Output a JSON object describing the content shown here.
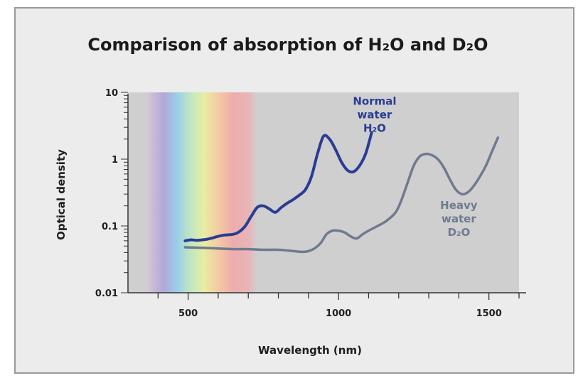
{
  "chart_data": {
    "type": "line",
    "title": "Comparison of absorption of H₂O and D₂O",
    "xlabel": "Wavelength (nm)",
    "ylabel": "Optical density",
    "xlim": [
      300,
      1600
    ],
    "ylim": [
      0.01,
      10
    ],
    "yscale": "log",
    "grid": false,
    "x_ticks": [
      {
        "value": 500,
        "label": "500"
      },
      {
        "value": 1000,
        "label": "1000"
      },
      {
        "value": 1500,
        "label": "1500"
      }
    ],
    "y_ticks": [
      {
        "value": 10,
        "label": "10"
      },
      {
        "value": 1,
        "label": "1"
      },
      {
        "value": 0.1,
        "label": "0.1"
      },
      {
        "value": 0.01,
        "label": "0.01"
      }
    ],
    "visible_spectrum_nm": [
      380,
      720
    ],
    "series": [
      {
        "name": "Normal water H₂O",
        "label_lines": [
          "Normal",
          "water",
          "H₂O"
        ],
        "label_anchor": {
          "x": 1120,
          "y": 6.5
        },
        "color": "#2a3c94",
        "x": [
          490,
          510,
          530,
          560,
          580,
          600,
          620,
          650,
          670,
          690,
          710,
          730,
          750,
          770,
          790,
          810,
          830,
          850,
          870,
          890,
          910,
          930,
          950,
          970,
          990,
          1010,
          1030,
          1050,
          1070,
          1090,
          1110
        ],
        "y": [
          0.06,
          0.062,
          0.061,
          0.063,
          0.066,
          0.07,
          0.073,
          0.075,
          0.082,
          0.1,
          0.14,
          0.19,
          0.2,
          0.18,
          0.16,
          0.19,
          0.22,
          0.25,
          0.29,
          0.35,
          0.55,
          1.2,
          2.2,
          2.0,
          1.4,
          0.9,
          0.68,
          0.65,
          0.8,
          1.2,
          2.5
        ]
      },
      {
        "name": "Heavy water D₂O",
        "label_lines": [
          "Heavy",
          "water",
          "D₂O"
        ],
        "label_anchor": {
          "x": 1400,
          "y": 0.18
        },
        "color": "#6f7a8f",
        "x": [
          490,
          550,
          600,
          650,
          700,
          750,
          800,
          850,
          880,
          900,
          920,
          940,
          960,
          980,
          1000,
          1020,
          1040,
          1060,
          1080,
          1100,
          1130,
          1160,
          1190,
          1210,
          1230,
          1250,
          1270,
          1290,
          1310,
          1330,
          1350,
          1370,
          1390,
          1410,
          1430,
          1450,
          1470,
          1490,
          1510,
          1530
        ],
        "y": [
          0.048,
          0.047,
          0.046,
          0.045,
          0.045,
          0.044,
          0.044,
          0.042,
          0.041,
          0.042,
          0.046,
          0.055,
          0.075,
          0.085,
          0.085,
          0.08,
          0.07,
          0.065,
          0.075,
          0.085,
          0.1,
          0.12,
          0.16,
          0.25,
          0.45,
          0.8,
          1.1,
          1.2,
          1.15,
          1.0,
          0.75,
          0.5,
          0.35,
          0.3,
          0.32,
          0.4,
          0.55,
          0.8,
          1.3,
          2.1
        ]
      }
    ]
  }
}
